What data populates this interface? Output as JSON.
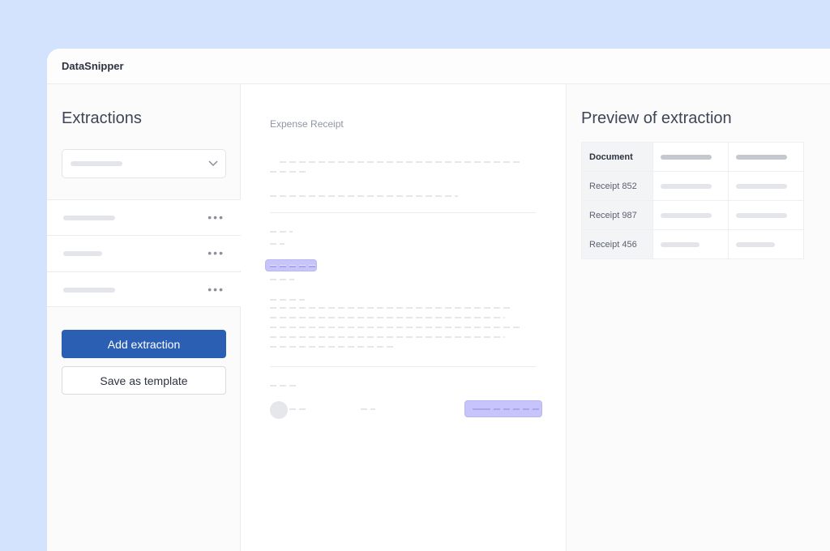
{
  "app": {
    "title": "DataSnipper"
  },
  "left": {
    "title": "Extractions",
    "dropdown_icon": "chevron-down-icon",
    "items": [
      {
        "menu_icon": "more-horizontal-icon"
      },
      {
        "menu_icon": "more-horizontal-icon"
      },
      {
        "menu_icon": "more-horizontal-icon"
      }
    ],
    "add_label": "Add extraction",
    "template_label": "Save as template"
  },
  "document": {
    "title": "Expense Receipt",
    "highlight_color": "#c6c4fb"
  },
  "preview": {
    "title": "Preview of extraction",
    "header": "Document",
    "rows": [
      "Receipt 852",
      "Receipt 987",
      "Receipt 456"
    ]
  },
  "colors": {
    "primary": "#2b5fb4",
    "background": "#d3e2fd"
  }
}
